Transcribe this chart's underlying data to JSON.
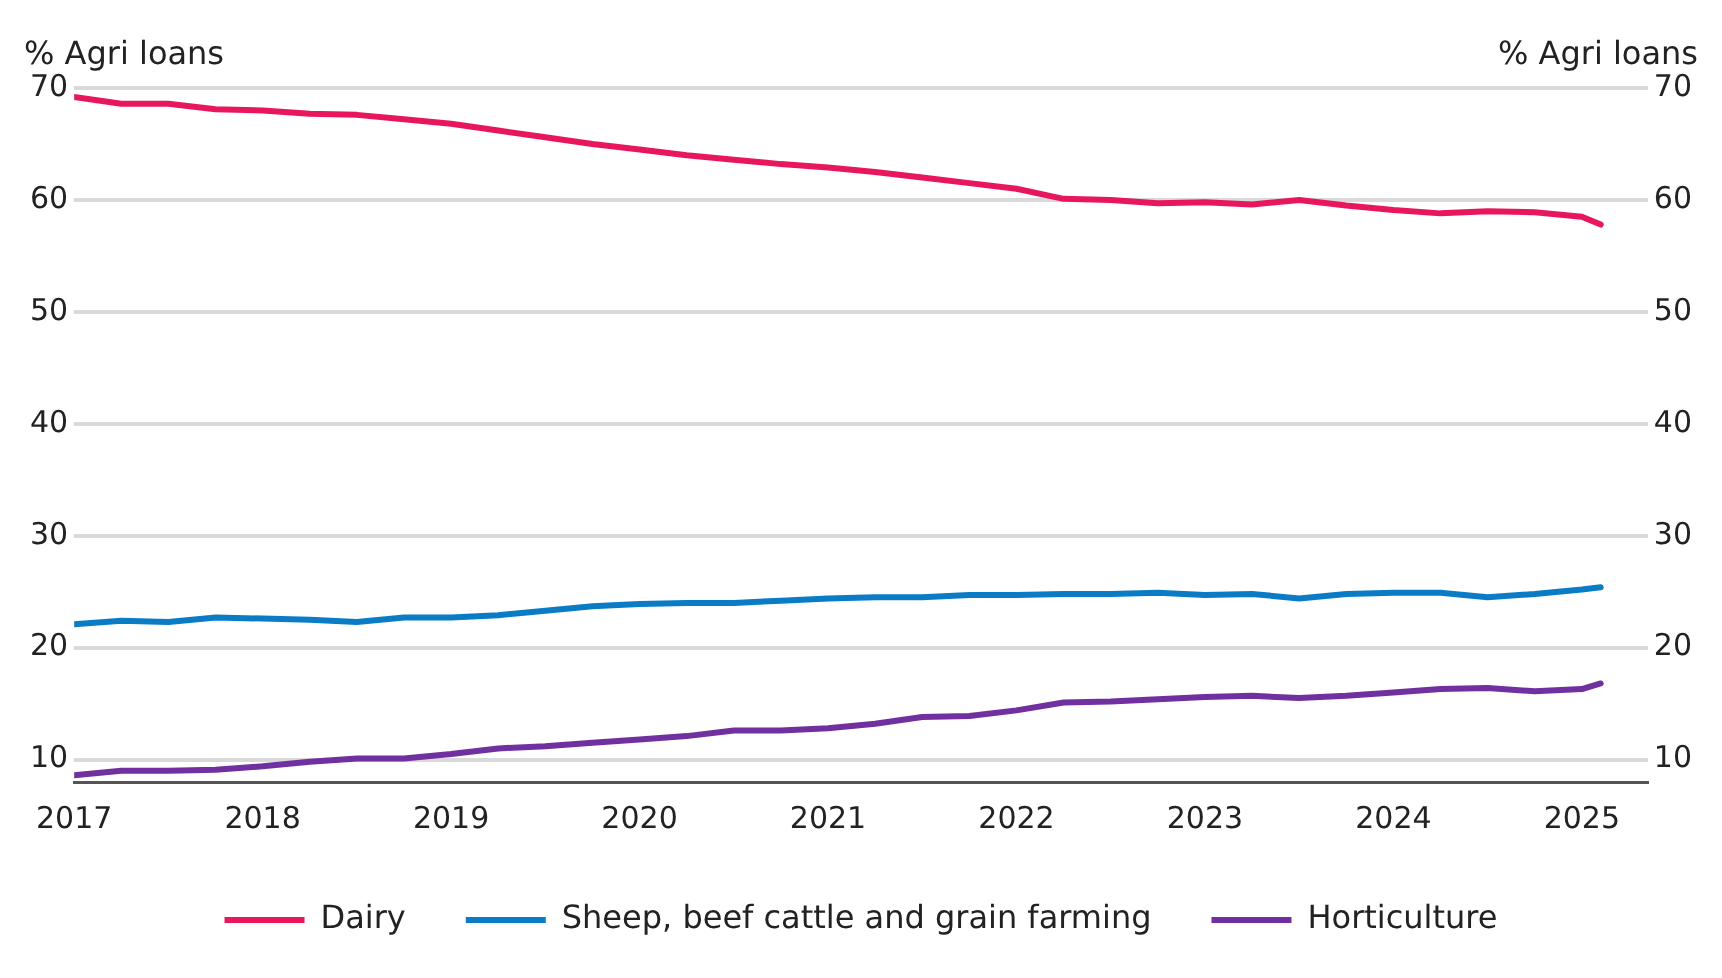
{
  "chart_data": {
    "type": "line",
    "ylabel": "% Agri loans",
    "y2label": "% Agri loans",
    "x": [
      2017,
      2017.25,
      2017.5,
      2017.75,
      2018,
      2018.25,
      2018.5,
      2018.75,
      2019,
      2019.25,
      2019.5,
      2019.75,
      2020,
      2020.25,
      2020.5,
      2020.75,
      2021,
      2021.25,
      2021.5,
      2021.75,
      2022,
      2022.25,
      2022.5,
      2022.75,
      2023,
      2023.25,
      2023.5,
      2023.75,
      2024,
      2024.25,
      2024.5,
      2024.75,
      2025,
      2025.1
    ],
    "series": [
      {
        "name": "Dairy",
        "color": "#e8175d",
        "values": [
          69.2,
          68.6,
          68.6,
          68.1,
          68.0,
          67.7,
          67.6,
          67.2,
          66.8,
          66.2,
          65.6,
          65.0,
          64.5,
          64.0,
          63.6,
          63.2,
          62.9,
          62.5,
          62.0,
          61.5,
          61.0,
          60.1,
          60.0,
          59.7,
          59.8,
          59.6,
          60.0,
          59.5,
          59.1,
          58.8,
          59.0,
          58.9,
          58.5,
          57.8
        ]
      },
      {
        "name": "Sheep, beef cattle and grain farming",
        "color": "#0a7cc5",
        "values": [
          22.1,
          22.4,
          22.3,
          22.7,
          22.6,
          22.5,
          22.3,
          22.7,
          22.7,
          22.9,
          23.3,
          23.7,
          23.9,
          24.0,
          24.0,
          24.2,
          24.4,
          24.5,
          24.5,
          24.7,
          24.7,
          24.8,
          24.8,
          24.9,
          24.7,
          24.8,
          24.4,
          24.8,
          24.9,
          24.9,
          24.5,
          24.8,
          25.2,
          25.4
        ]
      },
      {
        "name": "Horticulture",
        "color": "#7030a0",
        "values": [
          8.6,
          9.0,
          9.0,
          9.1,
          9.4,
          9.8,
          10.1,
          10.1,
          10.5,
          11.0,
          11.2,
          11.5,
          11.8,
          12.1,
          12.6,
          12.6,
          12.8,
          13.2,
          13.8,
          13.9,
          14.4,
          15.1,
          15.2,
          15.4,
          15.6,
          15.7,
          15.5,
          15.7,
          16.0,
          16.3,
          16.4,
          16.1,
          16.3,
          16.8
        ]
      }
    ],
    "xlim": [
      2017,
      2025.35
    ],
    "xticks": [
      2017,
      2018,
      2019,
      2020,
      2021,
      2022,
      2023,
      2024,
      2025
    ],
    "ylim": [
      8,
      70
    ],
    "yticks": [
      10,
      20,
      30,
      40,
      50,
      60,
      70
    ],
    "y2lim": [
      8,
      70
    ],
    "y2ticks": [
      10,
      20,
      30,
      40,
      50,
      60,
      70
    ],
    "grid": "y",
    "legend": "bottom",
    "marker": "none",
    "line_style": "solid"
  }
}
